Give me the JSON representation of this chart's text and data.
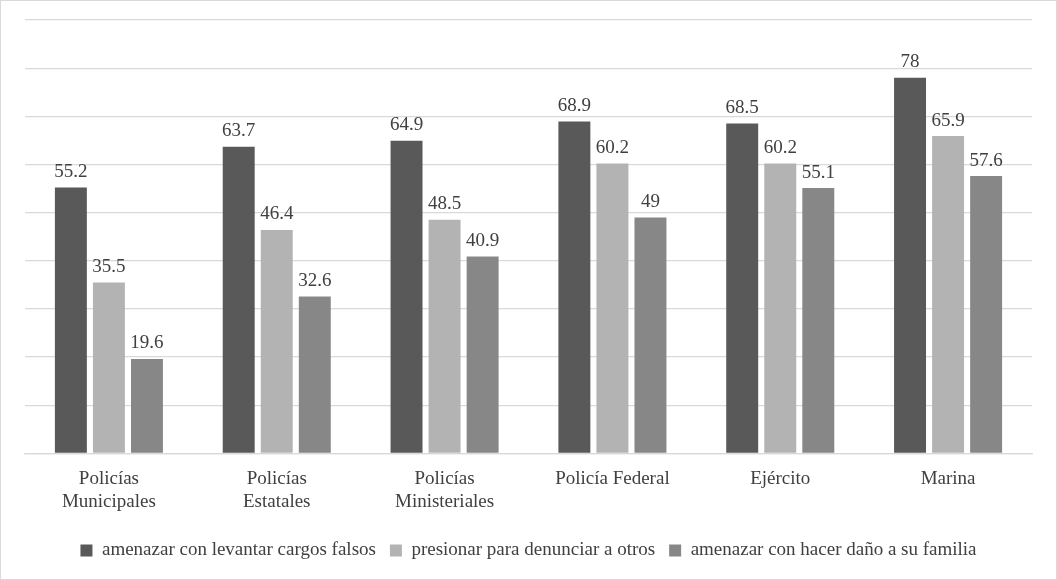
{
  "chart_data": {
    "type": "bar",
    "categories": [
      "Policías Municipales",
      "Policías Estatales",
      "Policías Ministeriales",
      "Policía Federal",
      "Ejército",
      "Marina"
    ],
    "series": [
      {
        "name": "amenazar con levantar cargos falsos",
        "color": "#595959",
        "values": [
          55.2,
          63.7,
          64.9,
          68.9,
          68.5,
          78
        ]
      },
      {
        "name": "presionar para denunciar a otros",
        "color": "#b3b3b3",
        "values": [
          35.5,
          46.4,
          48.5,
          60.2,
          60.2,
          65.9
        ]
      },
      {
        "name": "amenazar con hacer daño a su familia",
        "color": "#878787",
        "values": [
          19.6,
          32.6,
          40.9,
          49,
          55.1,
          57.6
        ]
      }
    ],
    "ylim": [
      0,
      90
    ],
    "yticks": [
      {
        "value": 0,
        "label": null
      },
      {
        "value": 10,
        "label": null
      },
      {
        "value": 20,
        "label": null
      },
      {
        "value": 30,
        "label": null
      },
      {
        "value": 40,
        "label": null
      },
      {
        "value": 50,
        "label": null
      },
      {
        "value": 60,
        "label": null
      },
      {
        "value": 70,
        "label": null
      },
      {
        "value": 80,
        "label": null
      },
      {
        "value": 90,
        "label": null
      }
    ],
    "tick_labels": "x",
    "grid": "y",
    "legend": "bottom",
    "data_labels": true
  }
}
